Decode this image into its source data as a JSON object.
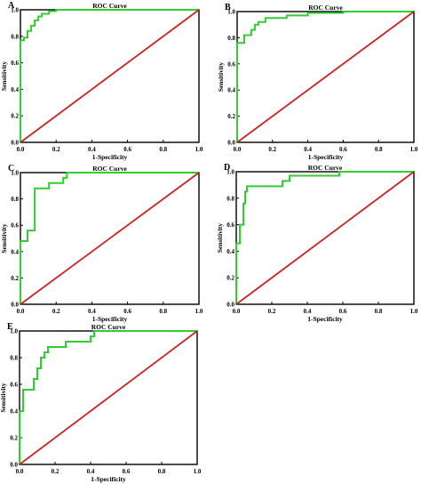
{
  "chart_data": [
    {
      "panel": "A",
      "type": "line",
      "title": "ROC Curve",
      "xlabel": "1-Specificity",
      "ylabel": "Sensitivity",
      "xlim": [
        0.0,
        1.0
      ],
      "ylim": [
        0.0,
        1.0
      ],
      "xticks": [
        "0.0",
        "0.2",
        "0.4",
        "0.6",
        "0.8",
        "1.0"
      ],
      "yticks": [
        "0.0",
        "0.2",
        "0.4",
        "0.6",
        "0.8",
        "1.0"
      ],
      "series": [
        {
          "color": "#33cc33",
          "style": "step",
          "points": [
            [
              0,
              0
            ],
            [
              0,
              0.77
            ],
            [
              0.02,
              0.77
            ],
            [
              0.02,
              0.79
            ],
            [
              0.04,
              0.79
            ],
            [
              0.04,
              0.84
            ],
            [
              0.06,
              0.84
            ],
            [
              0.06,
              0.88
            ],
            [
              0.08,
              0.88
            ],
            [
              0.08,
              0.92
            ],
            [
              0.1,
              0.92
            ],
            [
              0.1,
              0.95
            ],
            [
              0.12,
              0.95
            ],
            [
              0.12,
              0.97
            ],
            [
              0.16,
              0.97
            ],
            [
              0.16,
              0.99
            ],
            [
              0.2,
              0.99
            ],
            [
              0.2,
              1.0
            ],
            [
              1,
              1
            ]
          ]
        },
        {
          "color": "#cc2222",
          "style": "line",
          "points": [
            [
              0,
              0
            ],
            [
              1,
              1
            ]
          ]
        }
      ]
    },
    {
      "panel": "B",
      "type": "line",
      "title": "ROC Curve",
      "xlabel": "1-Specificity",
      "ylabel": "Sensitivity",
      "xlim": [
        0.0,
        1.0
      ],
      "ylim": [
        0.0,
        1.0
      ],
      "xticks": [
        "0.0",
        "0.2",
        "0.4",
        "0.6",
        "0.8",
        "1.0"
      ],
      "yticks": [
        "0.0",
        "0.2",
        "0.4",
        "0.6",
        "0.8",
        "1.0"
      ],
      "series": [
        {
          "color": "#33cc33",
          "style": "step",
          "points": [
            [
              0,
              0
            ],
            [
              0,
              0.76
            ],
            [
              0.04,
              0.76
            ],
            [
              0.04,
              0.82
            ],
            [
              0.08,
              0.82
            ],
            [
              0.08,
              0.86
            ],
            [
              0.1,
              0.86
            ],
            [
              0.1,
              0.9
            ],
            [
              0.12,
              0.9
            ],
            [
              0.12,
              0.92
            ],
            [
              0.16,
              0.92
            ],
            [
              0.16,
              0.95
            ],
            [
              0.28,
              0.95
            ],
            [
              0.28,
              0.97
            ],
            [
              0.4,
              0.97
            ],
            [
              0.4,
              0.99
            ],
            [
              0.6,
              0.99
            ],
            [
              0.6,
              1.0
            ],
            [
              1,
              1
            ]
          ]
        },
        {
          "color": "#cc2222",
          "style": "line",
          "points": [
            [
              0,
              0
            ],
            [
              1,
              1
            ]
          ]
        }
      ]
    },
    {
      "panel": "C",
      "type": "line",
      "title": "ROC Curve",
      "xlabel": "1-Specificity",
      "ylabel": "Sensitivity",
      "xlim": [
        0.0,
        1.0
      ],
      "ylim": [
        0.0,
        1.0
      ],
      "xticks": [
        "0.0",
        "0.2",
        "0.4",
        "0.6",
        "0.8",
        "1.0"
      ],
      "yticks": [
        "0.0",
        "0.2",
        "0.4",
        "0.6",
        "0.8",
        "1.0"
      ],
      "series": [
        {
          "color": "#33cc33",
          "style": "step",
          "points": [
            [
              0,
              0
            ],
            [
              0,
              0.48
            ],
            [
              0.04,
              0.48
            ],
            [
              0.04,
              0.56
            ],
            [
              0.08,
              0.56
            ],
            [
              0.08,
              0.88
            ],
            [
              0.16,
              0.88
            ],
            [
              0.16,
              0.92
            ],
            [
              0.24,
              0.92
            ],
            [
              0.24,
              0.96
            ],
            [
              0.26,
              0.96
            ],
            [
              0.26,
              1.0
            ],
            [
              1,
              1
            ]
          ]
        },
        {
          "color": "#cc2222",
          "style": "line",
          "points": [
            [
              0,
              0
            ],
            [
              1,
              1
            ]
          ]
        }
      ]
    },
    {
      "panel": "D",
      "type": "line",
      "title": "ROC Curve",
      "xlabel": "1-Specificity",
      "ylabel": "Sensitivity",
      "xlim": [
        0.0,
        1.0
      ],
      "ylim": [
        0.0,
        1.0
      ],
      "xticks": [
        "0.0",
        "0.2",
        "0.4",
        "0.6",
        "0.8",
        "1.0"
      ],
      "yticks": [
        "0.0",
        "0.2",
        "0.4",
        "0.6",
        "0.8",
        "1.0"
      ],
      "series": [
        {
          "color": "#33cc33",
          "style": "step",
          "points": [
            [
              0,
              0
            ],
            [
              0,
              0.46
            ],
            [
              0.02,
              0.46
            ],
            [
              0.02,
              0.6
            ],
            [
              0.04,
              0.6
            ],
            [
              0.04,
              0.76
            ],
            [
              0.05,
              0.76
            ],
            [
              0.05,
              0.85
            ],
            [
              0.06,
              0.85
            ],
            [
              0.06,
              0.89
            ],
            [
              0.26,
              0.89
            ],
            [
              0.26,
              0.93
            ],
            [
              0.3,
              0.93
            ],
            [
              0.3,
              0.97
            ],
            [
              0.58,
              0.97
            ],
            [
              0.58,
              1.0
            ],
            [
              1,
              1
            ]
          ]
        },
        {
          "color": "#cc2222",
          "style": "line",
          "points": [
            [
              0,
              0
            ],
            [
              1,
              1
            ]
          ]
        }
      ]
    },
    {
      "panel": "E",
      "type": "line",
      "title": "ROC Curve",
      "xlabel": "1-Specificity",
      "ylabel": "Sensitivity",
      "xlim": [
        0.0,
        1.0
      ],
      "ylim": [
        0.0,
        1.0
      ],
      "xticks": [
        "0.0",
        "0.2",
        "0.4",
        "0.6",
        "0.8",
        "1.0"
      ],
      "yticks": [
        "0.0",
        "0.2",
        "0.4",
        "0.6",
        "0.8",
        "1.0"
      ],
      "series": [
        {
          "color": "#33cc33",
          "style": "step",
          "points": [
            [
              0,
              0
            ],
            [
              0,
              0.4
            ],
            [
              0.02,
              0.4
            ],
            [
              0.02,
              0.56
            ],
            [
              0.08,
              0.56
            ],
            [
              0.08,
              0.64
            ],
            [
              0.1,
              0.64
            ],
            [
              0.1,
              0.72
            ],
            [
              0.12,
              0.72
            ],
            [
              0.12,
              0.8
            ],
            [
              0.14,
              0.8
            ],
            [
              0.14,
              0.84
            ],
            [
              0.16,
              0.84
            ],
            [
              0.16,
              0.88
            ],
            [
              0.26,
              0.88
            ],
            [
              0.26,
              0.92
            ],
            [
              0.4,
              0.92
            ],
            [
              0.4,
              0.96
            ],
            [
              0.42,
              0.96
            ],
            [
              0.42,
              1.0
            ],
            [
              1,
              1
            ]
          ]
        },
        {
          "color": "#cc2222",
          "style": "line",
          "points": [
            [
              0,
              0
            ],
            [
              1,
              1
            ]
          ]
        }
      ]
    }
  ]
}
